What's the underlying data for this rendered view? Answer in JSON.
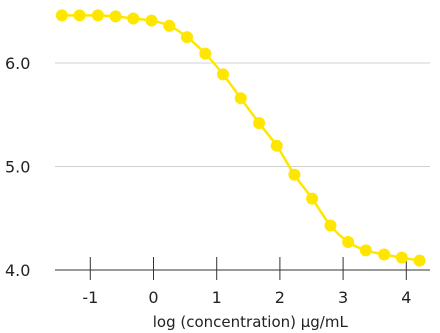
{
  "chart_data": {
    "type": "line",
    "title": "",
    "xlabel": "log (concentration) µg/mL",
    "ylabel": "",
    "xlim": [
      -1.6,
      4.35
    ],
    "ylim": [
      4.0,
      6.5
    ],
    "xticks": [
      -1,
      0,
      1,
      2,
      3,
      4
    ],
    "yticks": [
      4.0,
      5.0,
      6.0
    ],
    "xtick_labels": [
      "-1",
      "0",
      "1",
      "2",
      "3",
      "4"
    ],
    "ytick_labels": [
      "4.0",
      "5.0",
      "6.0"
    ],
    "grid": "horizontal",
    "legend": "none",
    "colors": {
      "series": "#ffe600",
      "grid": "#d0d0d0",
      "axis": "#333333"
    },
    "series": [
      {
        "x": [
          -1.45,
          -1.17,
          -0.88,
          -0.6,
          -0.32,
          -0.03,
          0.25,
          0.53,
          0.82,
          1.1,
          1.38,
          1.67,
          1.95,
          2.23,
          2.51,
          2.8,
          3.08,
          3.36,
          3.65,
          3.93,
          4.21
        ],
        "values": [
          6.46,
          6.46,
          6.46,
          6.45,
          6.43,
          6.41,
          6.36,
          6.25,
          6.09,
          5.89,
          5.66,
          5.42,
          5.2,
          4.92,
          4.69,
          4.43,
          4.27,
          4.19,
          4.15,
          4.12,
          4.09
        ]
      }
    ]
  }
}
